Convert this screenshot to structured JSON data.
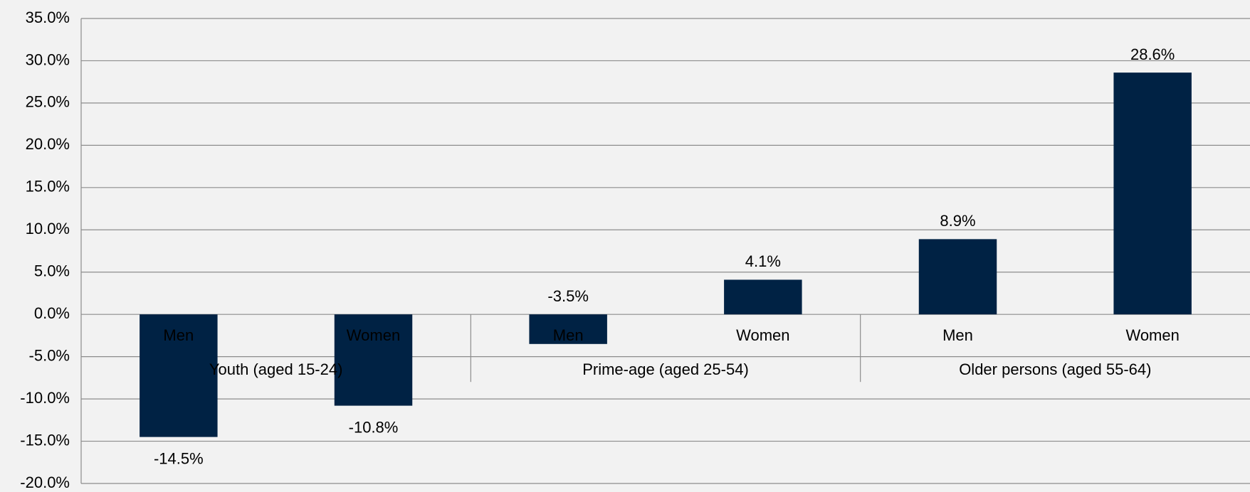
{
  "chart_data": {
    "type": "bar",
    "categories": [
      "Men",
      "Women",
      "Men",
      "Women",
      "Men",
      "Women"
    ],
    "groups": [
      "Youth (aged 15-24)",
      "Prime-age (aged 25-54)",
      "Older persons (aged 55-64)"
    ],
    "values": [
      -14.5,
      -10.8,
      -3.5,
      4.1,
      8.9,
      28.6
    ],
    "value_labels": [
      "-14.5%",
      "-10.8%",
      "-3.5%",
      "4.1%",
      "8.9%",
      "28.6%"
    ],
    "color": "#002244",
    "ylim": [
      -20,
      35
    ],
    "yticks": [
      {
        "value": -20,
        "label": "-20.0%"
      },
      {
        "value": -15,
        "label": "-15.0%"
      },
      {
        "value": -10,
        "label": "-10.0%"
      },
      {
        "value": -5,
        "label": "-5.0%"
      },
      {
        "value": 0,
        "label": "0.0%"
      },
      {
        "value": 5,
        "label": "5.0%"
      },
      {
        "value": 10,
        "label": "10.0%"
      },
      {
        "value": 15,
        "label": "15.0%"
      },
      {
        "value": 20,
        "label": "20.0%"
      },
      {
        "value": 25,
        "label": "25.0%"
      },
      {
        "value": 30,
        "label": "30.0%"
      },
      {
        "value": 35,
        "label": "35.0%"
      }
    ],
    "grid": true
  }
}
